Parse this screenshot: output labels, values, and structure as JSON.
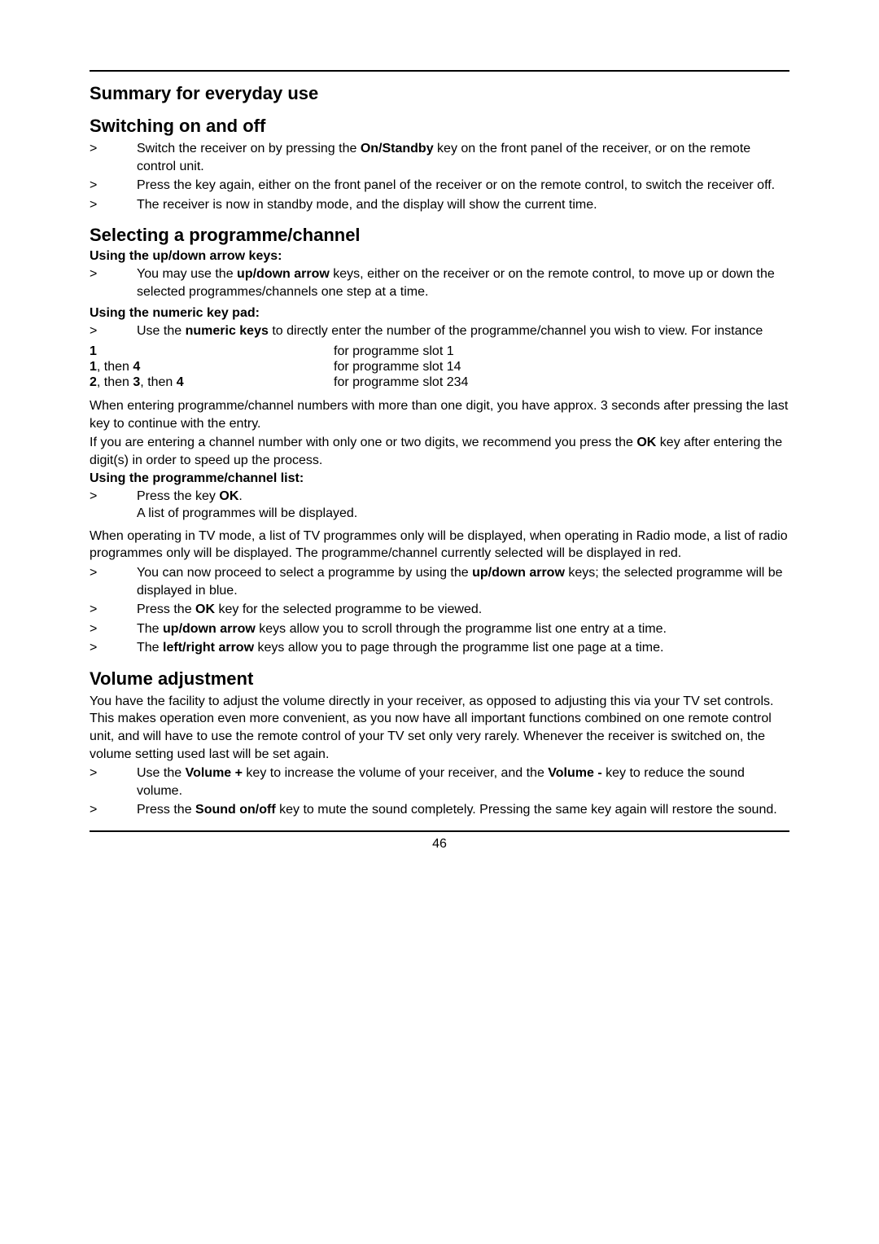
{
  "page": {
    "number": "46",
    "mainTitle": "Summary for everyday use"
  },
  "switching": {
    "heading": "Switching on and off",
    "items": [
      {
        "pre": "Switch the receiver on by pressing the ",
        "bold": "On/Standby",
        "post": " key on the front panel of the receiver, or on the remote control unit."
      },
      {
        "pre": "Press the key again, either on the front panel of the receiver or on the remote control, to switch the receiver off.",
        "bold": "",
        "post": ""
      },
      {
        "pre": "The receiver is now in standby mode, and the display will show the current time.",
        "bold": "",
        "post": ""
      }
    ]
  },
  "selecting": {
    "heading": "Selecting a programme/channel",
    "sub1": "Using the up/down arrow keys:",
    "sub1_item": {
      "pre": "You may use the ",
      "bold": "up/down arrow",
      "post": " keys, either on the receiver or on the remote control, to move up or down the selected programmes/channels one step at a time."
    },
    "sub2": "Using the numeric key pad:",
    "sub2_item": {
      "pre": "Use the ",
      "bold": "numeric keys",
      "post": " to directly enter the number of the programme/channel you wish to view. For instance"
    },
    "table": [
      {
        "keys": "1",
        "desc": "for programme slot 1"
      },
      {
        "keys_html": [
          "1",
          ", then ",
          "4"
        ],
        "desc": "for programme slot 14"
      },
      {
        "keys_html": [
          "2",
          ", then ",
          "3",
          ", then ",
          "4"
        ],
        "desc": "for programme slot 234"
      }
    ],
    "para1": "When entering programme/channel numbers with more than one digit, you have approx. 3 seconds after pressing the last key to continue with the entry.",
    "para2_pre": "If you are entering a channel number with only one or two digits, we recommend you press the ",
    "para2_bold": "OK",
    "para2_post": " key after entering the digit(s) in order to speed up the process.",
    "sub3": "Using the programme/channel list:",
    "sub3_item1_pre": "Press the key ",
    "sub3_item1_bold": "OK",
    "sub3_item1_post": ".",
    "sub3_item1_line2": "A list of programmes will be displayed.",
    "para3": "When operating in TV mode, a list of TV programmes only will be displayed, when operating in Radio mode, a list of radio programmes only will be displayed. The programme/channel currently selected will be displayed in red.",
    "sub3_items": [
      {
        "pre": "You can now proceed to select a programme by using the ",
        "bold": "up/down arrow",
        "post": " keys; the selected programme will be displayed in blue."
      },
      {
        "pre": "Press the ",
        "bold": "OK",
        "post": " key for the selected programme to be viewed."
      },
      {
        "pre": "The ",
        "bold": "up/down arrow",
        "post": " keys allow you to scroll through the programme list one entry at a time."
      },
      {
        "pre": "The ",
        "bold": "left/right arrow",
        "post": " keys allow you to page through the programme list one page at a time."
      }
    ]
  },
  "volume": {
    "heading": "Volume adjustment",
    "para": "You have the facility to adjust the volume directly in your receiver, as opposed to adjusting this via your TV set controls. This makes operation even more convenient, as you now have all important functions combined on one remote control unit, and will have to use the remote control of your TV set only very rarely. Whenever the receiver is switched on, the volume setting used last will be set again.",
    "items": [
      {
        "pre": "Use the ",
        "bold": "Volume +",
        "mid": " key to increase the volume of your receiver, and the ",
        "bold2": "Volume -",
        "post": " key to reduce the sound volume."
      },
      {
        "pre": "Press the ",
        "bold": "Sound on/off",
        "mid": " key to mute the sound completely. Pressing the same key again will restore the sound.",
        "bold2": "",
        "post": ""
      }
    ]
  },
  "marker": ">"
}
